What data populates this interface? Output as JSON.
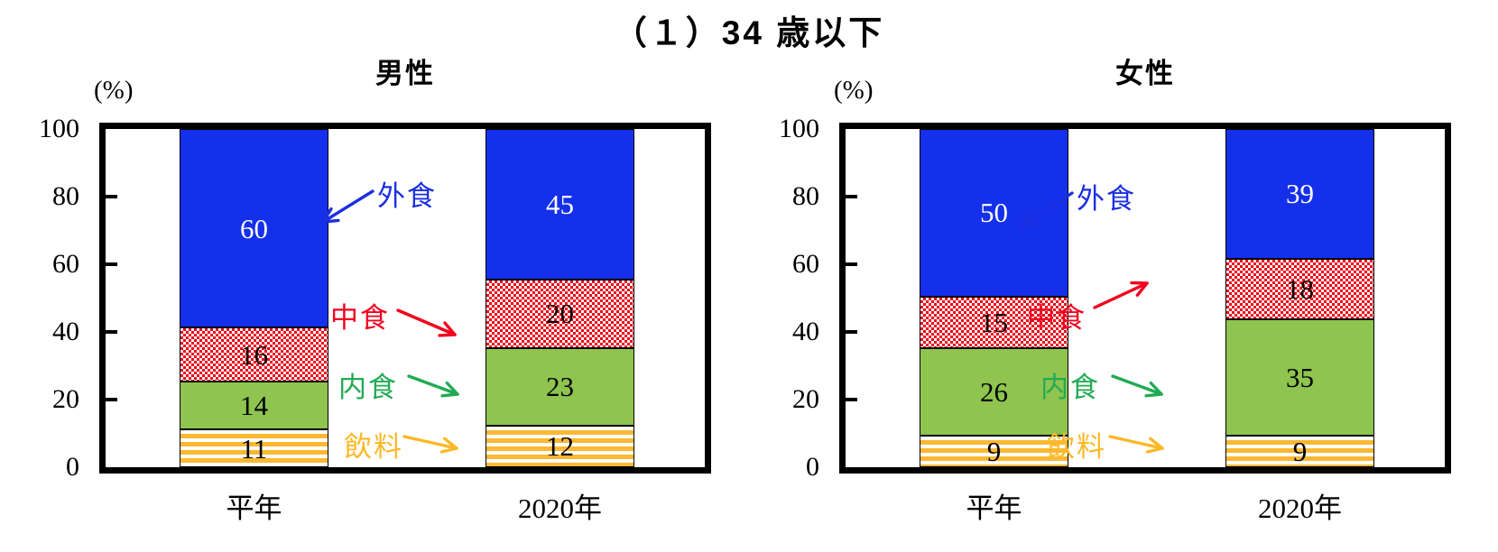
{
  "title": "（１）34 歳以下",
  "chart_data": [
    {
      "type": "bar",
      "stacked": true,
      "title": "男性",
      "ylabel": "(%)",
      "ylim": [
        0,
        100
      ],
      "y_ticks": [
        100,
        80,
        60,
        40,
        20,
        0
      ],
      "grid": false,
      "legend_position": "between-bars-with-arrows",
      "categories": [
        "平年",
        "2020年"
      ],
      "series": [
        {
          "name": "外食",
          "values": [
            60,
            45
          ],
          "color": "#1430eb",
          "label_color": "#1b2fe0",
          "value_text_color": "#ffffff",
          "pattern": "solid"
        },
        {
          "name": "中食",
          "values": [
            16,
            20
          ],
          "color": "#ef0018",
          "label_color": "#f2001e",
          "value_text_color": "#000000",
          "pattern": "checker"
        },
        {
          "name": "内食",
          "values": [
            14,
            23
          ],
          "color": "#8ec44f",
          "label_color": "#22aa55",
          "value_text_color": "#000000",
          "pattern": "solid"
        },
        {
          "name": "飲料",
          "values": [
            11,
            12
          ],
          "color": "#fbb832",
          "label_color": "#fcb827",
          "value_text_color": "#000000",
          "pattern": "hstripe"
        }
      ]
    },
    {
      "type": "bar",
      "stacked": true,
      "title": "女性",
      "ylabel": "(%)",
      "ylim": [
        0,
        100
      ],
      "y_ticks": [
        100,
        80,
        60,
        40,
        20,
        0
      ],
      "grid": false,
      "legend_position": "between-bars-with-arrows",
      "categories": [
        "平年",
        "2020年"
      ],
      "series": [
        {
          "name": "外食",
          "values": [
            50,
            39
          ],
          "color": "#1430eb",
          "label_color": "#1b2fe0",
          "value_text_color": "#ffffff",
          "pattern": "solid"
        },
        {
          "name": "中食",
          "values": [
            15,
            18
          ],
          "color": "#ef0018",
          "label_color": "#f2001e",
          "value_text_color": "#000000",
          "pattern": "checker"
        },
        {
          "name": "内食",
          "values": [
            26,
            35
          ],
          "color": "#8ec44f",
          "label_color": "#22aa55",
          "value_text_color": "#000000",
          "pattern": "solid"
        },
        {
          "name": "飲料",
          "values": [
            9,
            9
          ],
          "color": "#fbb832",
          "label_color": "#fcb827",
          "value_text_color": "#000000",
          "pattern": "hstripe"
        }
      ]
    }
  ]
}
